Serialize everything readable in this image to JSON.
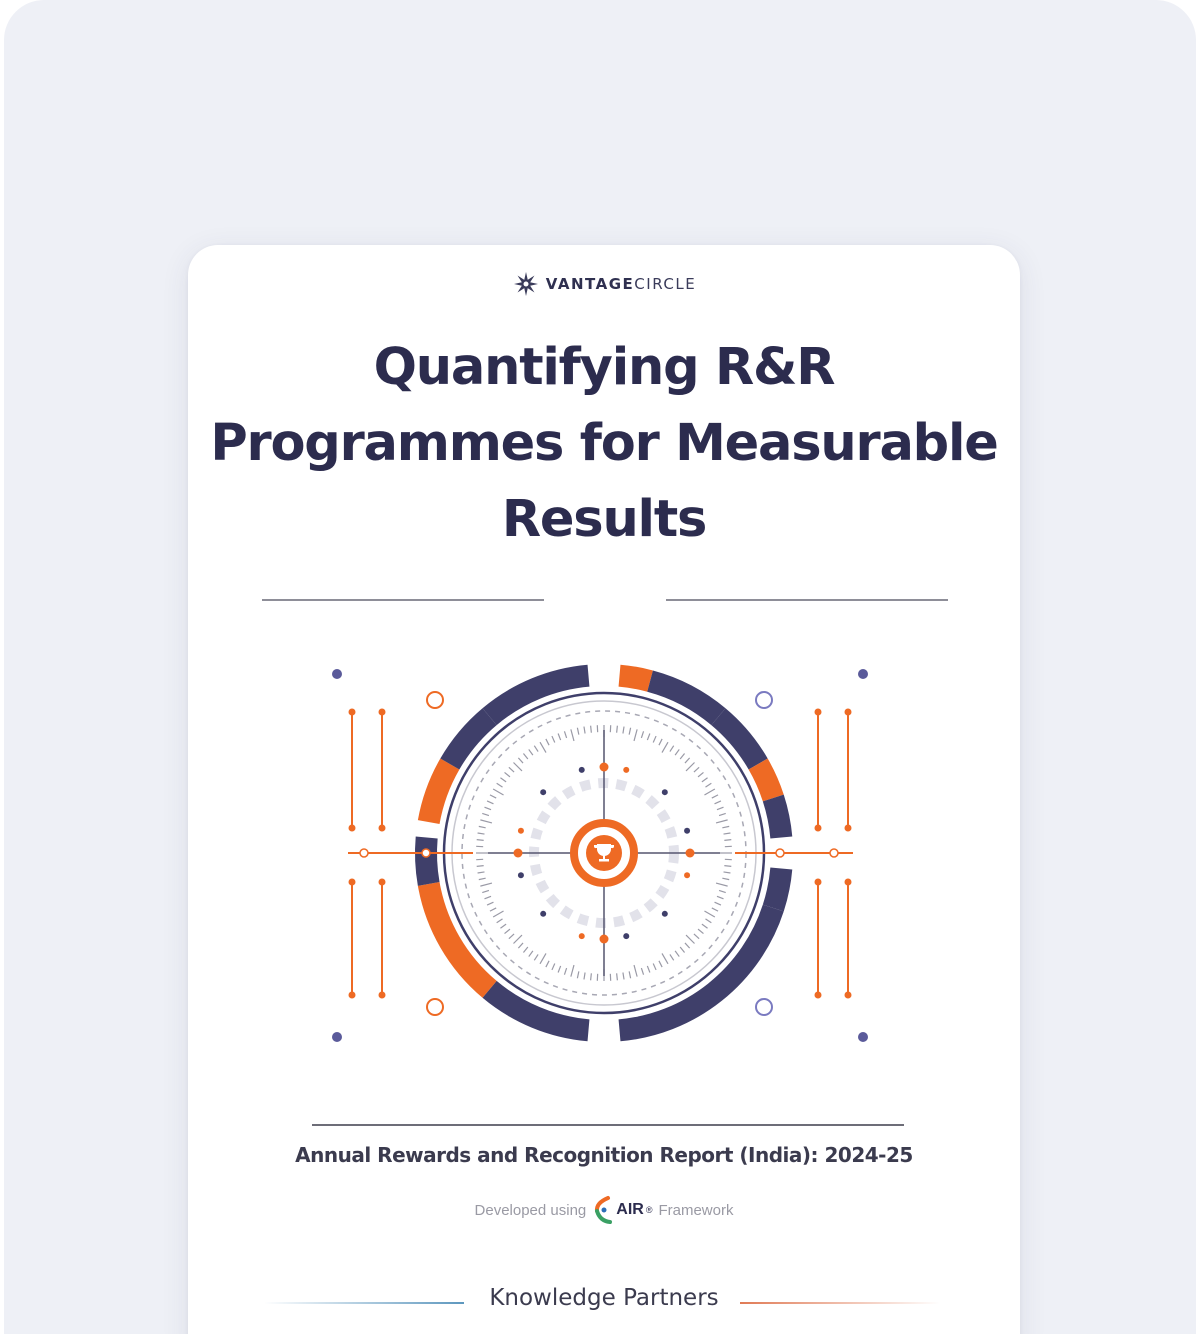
{
  "brand": {
    "logo_icon": "vantagecircle-star-icon",
    "name_bold": "VANTAGE",
    "name_regular": "CIRCLE"
  },
  "report": {
    "title": "Quantifying R&R Programmes for Measurable Results",
    "subtitle": "Annual Rewards and Recognition Report (India): 2024-25",
    "developed_prefix": "Developed using",
    "framework_logo_text": "AIR",
    "framework_trademark": "®",
    "developed_suffix": "Framework",
    "partners_heading": "Knowledge Partners"
  },
  "illustration": {
    "center_icon": "trophy-icon",
    "colors": {
      "navy": "#3f3f6a",
      "orange": "#ee6a24",
      "gray": "#8e8e98"
    }
  }
}
